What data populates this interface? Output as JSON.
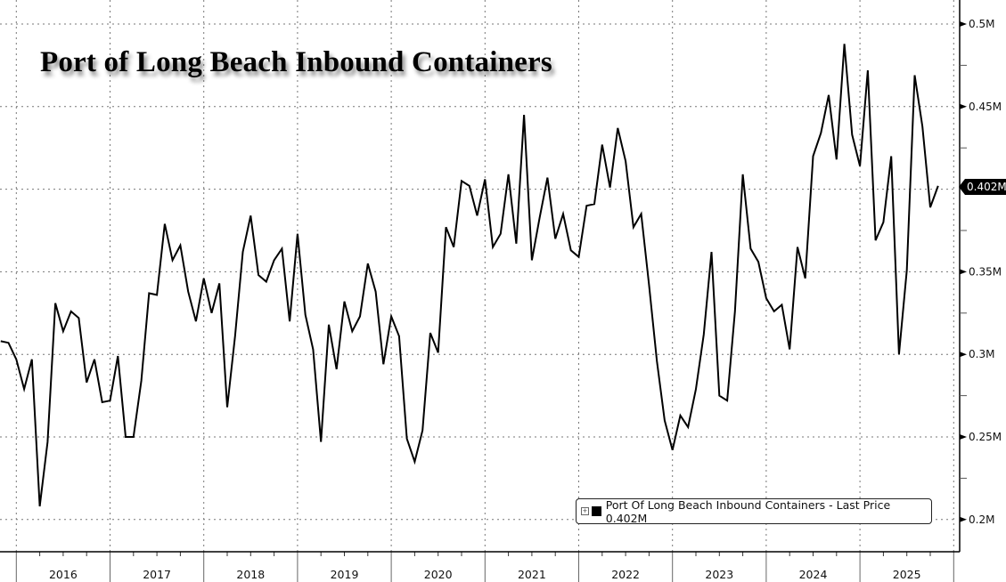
{
  "chart_data": {
    "type": "line",
    "title": "Port of Long Beach Inbound Containers",
    "xlabel": "",
    "ylabel": "",
    "frequency": "monthly",
    "x": [
      "2015-10",
      "2015-11",
      "2015-12",
      "2016-01",
      "2016-02",
      "2016-03",
      "2016-04",
      "2016-05",
      "2016-06",
      "2016-07",
      "2016-08",
      "2016-09",
      "2016-10",
      "2016-11",
      "2016-12",
      "2017-01",
      "2017-02",
      "2017-03",
      "2017-04",
      "2017-05",
      "2017-06",
      "2017-07",
      "2017-08",
      "2017-09",
      "2017-10",
      "2017-11",
      "2017-12",
      "2018-01",
      "2018-02",
      "2018-03",
      "2018-04",
      "2018-05",
      "2018-06",
      "2018-07",
      "2018-08",
      "2018-09",
      "2018-10",
      "2018-11",
      "2018-12",
      "2019-01",
      "2019-02",
      "2019-03",
      "2019-04",
      "2019-05",
      "2019-06",
      "2019-07",
      "2019-08",
      "2019-09",
      "2019-10",
      "2019-11",
      "2019-12",
      "2020-01",
      "2020-02",
      "2020-03",
      "2020-04",
      "2020-05",
      "2020-06",
      "2020-07",
      "2020-08",
      "2020-09",
      "2020-10",
      "2020-11",
      "2020-12",
      "2021-01",
      "2021-02",
      "2021-03",
      "2021-04",
      "2021-05",
      "2021-06",
      "2021-07",
      "2021-08",
      "2021-09",
      "2021-10",
      "2021-11",
      "2021-12",
      "2022-01",
      "2022-02",
      "2022-03",
      "2022-04",
      "2022-05",
      "2022-06",
      "2022-07",
      "2022-08",
      "2022-09",
      "2022-10",
      "2022-11",
      "2022-12",
      "2023-01",
      "2023-02",
      "2023-03",
      "2023-04",
      "2023-05",
      "2023-06",
      "2023-07",
      "2023-08",
      "2023-09",
      "2023-10",
      "2023-11",
      "2023-12",
      "2024-01",
      "2024-02",
      "2024-03",
      "2024-04",
      "2024-05",
      "2024-06",
      "2024-07",
      "2024-08",
      "2024-09",
      "2024-10",
      "2024-11",
      "2024-12",
      "2025-01",
      "2025-02",
      "2025-03",
      "2025-04",
      "2025-05",
      "2025-06",
      "2025-07",
      "2025-08",
      "2025-09",
      "2025-10"
    ],
    "series": [
      {
        "name": "Port Of Long Beach Inbound Containers",
        "color": "#000000",
        "values": [
          0.308,
          0.307,
          0.297,
          0.279,
          0.297,
          0.208,
          0.247,
          0.331,
          0.314,
          0.326,
          0.322,
          0.283,
          0.297,
          0.271,
          0.272,
          0.299,
          0.25,
          0.25,
          0.284,
          0.337,
          0.336,
          0.379,
          0.357,
          0.366,
          0.338,
          0.32,
          0.346,
          0.325,
          0.343,
          0.268,
          0.311,
          0.362,
          0.384,
          0.348,
          0.344,
          0.357,
          0.364,
          0.32,
          0.373,
          0.324,
          0.303,
          0.247,
          0.318,
          0.291,
          0.332,
          0.314,
          0.323,
          0.355,
          0.338,
          0.294,
          0.323,
          0.311,
          0.249,
          0.235,
          0.254,
          0.313,
          0.301,
          0.377,
          0.365,
          0.405,
          0.402,
          0.384,
          0.406,
          0.365,
          0.373,
          0.409,
          0.367,
          0.445,
          0.357,
          0.383,
          0.407,
          0.37,
          0.385,
          0.363,
          0.359,
          0.39,
          0.391,
          0.427,
          0.401,
          0.437,
          0.417,
          0.377,
          0.385,
          0.342,
          0.296,
          0.26,
          0.242,
          0.263,
          0.256,
          0.279,
          0.312,
          0.362,
          0.275,
          0.272,
          0.326,
          0.409,
          0.364,
          0.356,
          0.334,
          0.326,
          0.33,
          0.303,
          0.365,
          0.346,
          0.42,
          0.434,
          0.457,
          0.418,
          0.488,
          0.433,
          0.414,
          0.472,
          0.369,
          0.38,
          0.42,
          0.3,
          0.351,
          0.469,
          0.438,
          0.389,
          0.402
        ]
      }
    ],
    "ylim": [
      0.179,
      0.514
    ],
    "yticks": [
      {
        "value": 0.5,
        "label": "0.5M"
      },
      {
        "value": 0.45,
        "label": "0.45M"
      },
      {
        "value": 0.35,
        "label": "0.35M"
      },
      {
        "value": 0.3,
        "label": "0.3M"
      },
      {
        "value": 0.25,
        "label": "0.25M"
      },
      {
        "value": 0.2,
        "label": "0.2M"
      }
    ],
    "ygrid": [
      0.5,
      0.45,
      0.4,
      0.35,
      0.3,
      0.25,
      0.2
    ],
    "yminor": [
      0.475,
      0.425,
      0.375,
      0.325,
      0.275,
      0.225
    ],
    "xyears": [
      "2016",
      "2017",
      "2018",
      "2019",
      "2020",
      "2021",
      "2022",
      "2023",
      "2024",
      "2025"
    ],
    "grid": true,
    "legend": {
      "placement": "bottom-right",
      "text": "Port Of Long Beach Inbound Containers - Last Price 0.402M",
      "expand_glyph": "+"
    },
    "last_value_label": "0.402M"
  }
}
